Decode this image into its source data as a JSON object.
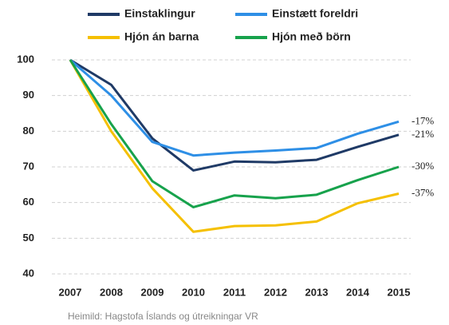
{
  "chart_data": {
    "type": "line",
    "categories": [
      "2007",
      "2008",
      "2009",
      "2010",
      "2011",
      "2012",
      "2013",
      "2014",
      "2015"
    ],
    "series": [
      {
        "name": "Einstaklingur",
        "color": "#1f3a66",
        "values": [
          100,
          93,
          78,
          69,
          71.5,
          71.3,
          72,
          75.6,
          79
        ],
        "end_label": "-21%"
      },
      {
        "name": "Einstætt foreldri",
        "color": "#2e8fe6",
        "values": [
          100,
          90,
          77,
          73.2,
          74,
          74.6,
          75.3,
          79.3,
          82.7
        ],
        "end_label": "-17%"
      },
      {
        "name": "Hjón án barna",
        "color": "#f5c000",
        "values": [
          100,
          80,
          64,
          51.8,
          53.4,
          53.6,
          54.7,
          59.8,
          62.5
        ],
        "end_label": "-37%"
      },
      {
        "name": "Hjón með börn",
        "color": "#17a24c",
        "values": [
          100,
          82,
          66,
          58.7,
          62,
          61.2,
          62.2,
          66.3,
          70
        ],
        "end_label": "-30%"
      }
    ],
    "ylim": [
      40,
      100
    ],
    "yticks": [
      40,
      50,
      60,
      70,
      80,
      90,
      100
    ],
    "grid": true,
    "source": "Heimild: Hagstofa Íslands og útreikningar  VR"
  }
}
